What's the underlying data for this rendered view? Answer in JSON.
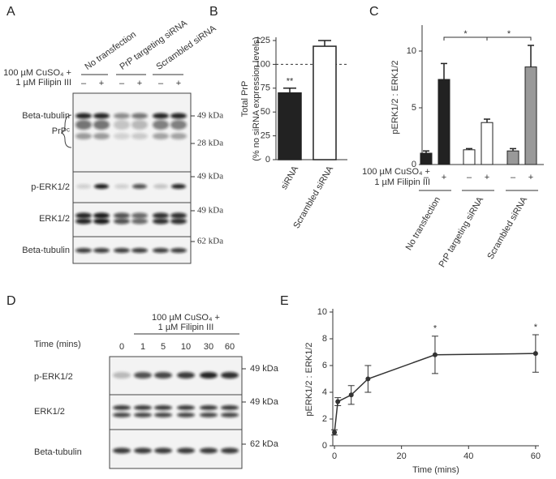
{
  "panel_labels": [
    "A",
    "B",
    "C",
    "D",
    "E"
  ],
  "blot_a": {
    "conditions": [
      "No transfection",
      "PrP targeting siRNA",
      "Scrambled siRNA"
    ],
    "treatment": [
      "100 µM CuSO₄ +",
      "1 µM Filipin III"
    ],
    "signs": [
      "–",
      "+"
    ],
    "rows": [
      "Beta-tubulin",
      "PrPᶜ",
      "p-ERK1/2",
      "ERK1/2",
      "Beta-tubulin"
    ],
    "markers": [
      "49 kDa",
      "28 kDa",
      "49 kDa",
      "49 kDa",
      "62 kDa"
    ]
  },
  "blot_d": {
    "treatment": [
      "100 µM CuSO₄ +",
      "1 µM Filipin III"
    ],
    "time_label": "Time (mins)",
    "times": [
      0,
      1,
      5,
      10,
      30,
      60
    ],
    "rows": [
      "p-ERK1/2",
      "ERK1/2",
      "Beta-tubulin"
    ],
    "markers": [
      "49 kDa",
      "49 kDa",
      "62 kDa"
    ]
  },
  "chart_data": [
    {
      "type": "bar",
      "y_label": [
        "Total PrP",
        "(% no siRNA expression levels)"
      ],
      "categories": [
        "siRNA",
        "Scrambled siRNA"
      ],
      "values": [
        70,
        119
      ],
      "errors": [
        5,
        6
      ],
      "colors": [
        "#222222",
        "#ffffff"
      ],
      "value_annotations": [
        "**",
        null
      ],
      "reference_line": 100,
      "ylim": [
        0,
        125
      ],
      "yticks": [
        0,
        25,
        50,
        75,
        100,
        125
      ]
    },
    {
      "type": "grouped_bar",
      "y_label": "pERK1/2 : ERK1/2",
      "treatment": [
        "100 µM CuSO₄ +",
        "1 µM Filipin III"
      ],
      "categories": [
        "No transfection",
        "PrP targeting siRNA",
        "Scrambled siRNA"
      ],
      "colors": [
        "#222222",
        "#ffffff",
        "#999999"
      ],
      "series": [
        {
          "name": "–",
          "values": [
            1.0,
            1.3,
            1.2
          ],
          "errors": [
            0.2,
            0.1,
            0.2
          ]
        },
        {
          "name": "+",
          "values": [
            7.5,
            3.7,
            8.6
          ],
          "errors": [
            1.4,
            0.3,
            1.9
          ]
        }
      ],
      "brackets": [
        "*",
        "*"
      ],
      "ylim": [
        0,
        12
      ],
      "yticks": [
        0,
        5,
        10
      ]
    },
    {
      "type": "line",
      "x_label": "Time (mins)",
      "y_label": "pERK1/2 : ERK1/2",
      "x": [
        0,
        1,
        5,
        10,
        30,
        60
      ],
      "values": [
        1.0,
        3.3,
        3.8,
        5.0,
        6.8,
        6.9
      ],
      "errors": [
        0.2,
        0.3,
        0.7,
        1.0,
        1.4,
        1.4
      ],
      "value_annotations": [
        null,
        null,
        null,
        null,
        "*",
        "*"
      ],
      "color": "#333333",
      "xlim": [
        -0.5,
        61
      ],
      "xticks": [
        0,
        20,
        40,
        60
      ],
      "ylim": [
        0,
        10
      ],
      "yticks": [
        0,
        2,
        4,
        6,
        8,
        10
      ]
    }
  ]
}
